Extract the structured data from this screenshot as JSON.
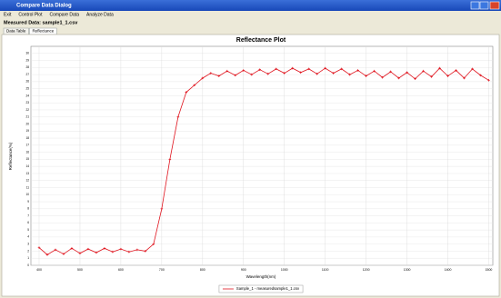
{
  "window": {
    "title": "Compare Data Dialog",
    "menu": [
      "Exit",
      "Control Plot",
      "Compare Data",
      "Analyze Data"
    ],
    "measured_label": "Measured Data: sample1_1.csv",
    "tabs": [
      "Data Table",
      "Reflectance"
    ]
  },
  "chart_data": {
    "type": "line",
    "title": "Reflectance Plot",
    "x_label": "Wavelength(nm)",
    "y_label": "Reflectance(%)",
    "x": [
      400,
      420,
      440,
      460,
      480,
      500,
      520,
      540,
      560,
      580,
      600,
      620,
      640,
      660,
      680,
      700,
      720,
      740,
      760,
      780,
      800,
      820,
      840,
      860,
      880,
      900,
      920,
      940,
      960,
      980,
      1000,
      1020,
      1040,
      1060,
      1080,
      1100,
      1120,
      1140,
      1160,
      1180,
      1200,
      1220,
      1240,
      1260,
      1280,
      1300,
      1320,
      1340,
      1360,
      1380,
      1400,
      1420,
      1440,
      1460,
      1480,
      1500
    ],
    "series": [
      {
        "name": "Sample_1 - measuredsample1_1.csv",
        "color": "#e0141e",
        "values": [
          2.5,
          1.5,
          2.2,
          1.6,
          2.4,
          1.7,
          2.3,
          1.8,
          2.4,
          1.9,
          2.3,
          1.9,
          2.2,
          2.0,
          3.0,
          8,
          15,
          21,
          24.5,
          25.5,
          26.5,
          27.2,
          26.8,
          27.5,
          26.9,
          27.6,
          27.0,
          27.7,
          27.1,
          27.8,
          27.2,
          27.9,
          27.3,
          27.8,
          27.1,
          27.9,
          27.2,
          27.8,
          27.0,
          27.6,
          26.8,
          27.5,
          26.6,
          27.4,
          26.5,
          27.3,
          26.4,
          27.5,
          26.7,
          27.9,
          26.8,
          27.6,
          26.5,
          27.8,
          26.9,
          26.2
        ]
      }
    ],
    "xlim": [
      380,
      1510
    ],
    "xticks": [
      400,
      500,
      600,
      700,
      800,
      900,
      1000,
      1100,
      1200,
      1300,
      1400,
      1500
    ],
    "ylim": [
      0,
      31
    ],
    "yticks": [
      0,
      1,
      2,
      3,
      4,
      5,
      6,
      7,
      8,
      9,
      10,
      11,
      12,
      13,
      14,
      15,
      16,
      17,
      18,
      19,
      20,
      21,
      22,
      23,
      24,
      25,
      26,
      27,
      28,
      29,
      30
    ],
    "grid": true,
    "legend": "bottom"
  }
}
